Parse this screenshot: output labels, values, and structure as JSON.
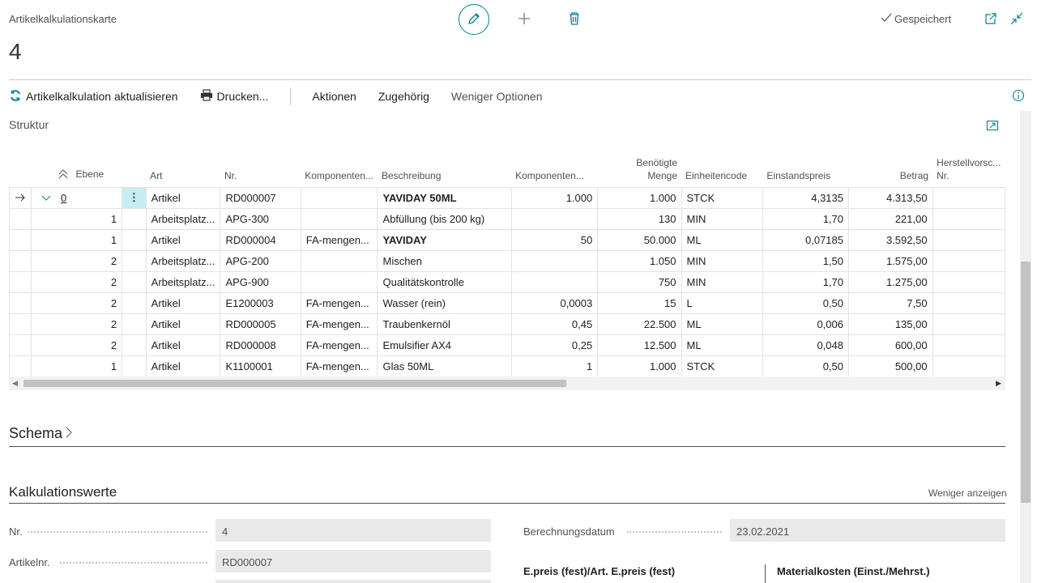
{
  "header": {
    "caption": "Artikelkalkulationskarte",
    "number": "4",
    "status": "Gespeichert",
    "icons": [
      "edit-icon",
      "plus-icon",
      "delete-icon",
      "open-new-window-icon",
      "collapse-icon"
    ]
  },
  "actions": {
    "update": "Artikelkalkulation aktualisieren",
    "print": "Drucken...",
    "actions": "Aktionen",
    "related": "Zugehörig",
    "fewer_options": "Weniger Optionen"
  },
  "struktur": {
    "title": "Struktur",
    "columns": {
      "ebene": "Ebene",
      "art": "Art",
      "nr": "Nr.",
      "komponenten": "Komponenten...",
      "beschreibung": "Beschreibung",
      "komponenten2": "Komponenten...",
      "menge_line1": "Benötigte",
      "menge_line2": "Menge",
      "einheit": "Einheitencode",
      "einstand": "Einstandspreis",
      "betrag": "Betrag",
      "herst_line1": "Herstellvorsc...",
      "herst_line2": "Nr."
    },
    "rows": [
      {
        "ebene": "0",
        "art": "Artikel",
        "nr": "RD000007",
        "komp": "",
        "beschreibung": "YAVIDAY 50ML",
        "komp2": "1.000",
        "menge": "1.000",
        "einheit": "STCK",
        "einstand": "4,3135",
        "betrag": "4.313,50",
        "herst": ""
      },
      {
        "ebene": "1",
        "art": "Arbeitsplatz...",
        "nr": "APG-300",
        "komp": "",
        "beschreibung": "Abfüllung (bis 200 kg)",
        "komp2": "",
        "menge": "130",
        "einheit": "MIN",
        "einstand": "1,70",
        "betrag": "221,00",
        "herst": ""
      },
      {
        "ebene": "1",
        "art": "Artikel",
        "nr": "RD000004",
        "komp": "FA-mengen...",
        "beschreibung": "YAVIDAY",
        "komp2": "50",
        "menge": "50.000",
        "einheit": "ML",
        "einstand": "0,07185",
        "betrag": "3.592,50",
        "herst": ""
      },
      {
        "ebene": "2",
        "art": "Arbeitsplatz...",
        "nr": "APG-200",
        "komp": "",
        "beschreibung": "Mischen",
        "komp2": "",
        "menge": "1.050",
        "einheit": "MIN",
        "einstand": "1,50",
        "betrag": "1.575,00",
        "herst": ""
      },
      {
        "ebene": "2",
        "art": "Arbeitsplatz...",
        "nr": "APG-900",
        "komp": "",
        "beschreibung": "Qualitätskontrolle",
        "komp2": "",
        "menge": "750",
        "einheit": "MIN",
        "einstand": "1,70",
        "betrag": "1.275,00",
        "herst": ""
      },
      {
        "ebene": "2",
        "art": "Artikel",
        "nr": "E1200003",
        "komp": "FA-mengen...",
        "beschreibung": "Wasser (rein)",
        "komp2": "0,0003",
        "menge": "15",
        "einheit": "L",
        "einstand": "0,50",
        "betrag": "7,50",
        "herst": ""
      },
      {
        "ebene": "2",
        "art": "Artikel",
        "nr": "RD000005",
        "komp": "FA-mengen...",
        "beschreibung": "Traubenkernöl",
        "komp2": "0,45",
        "menge": "22.500",
        "einheit": "ML",
        "einstand": "0,006",
        "betrag": "135,00",
        "herst": ""
      },
      {
        "ebene": "2",
        "art": "Artikel",
        "nr": "RD000008",
        "komp": "FA-mengen...",
        "beschreibung": "Emulsifier AX4",
        "komp2": "0,25",
        "menge": "12.500",
        "einheit": "ML",
        "einstand": "0,048",
        "betrag": "600,00",
        "herst": ""
      },
      {
        "ebene": "1",
        "art": "Artikel",
        "nr": "K1100001",
        "komp": "FA-mengen...",
        "beschreibung": "Glas 50ML",
        "komp2": "1",
        "menge": "1.000",
        "einheit": "STCK",
        "einstand": "0,50",
        "betrag": "500,00",
        "herst": ""
      }
    ]
  },
  "schema": {
    "title": "Schema"
  },
  "kalkulationswerte": {
    "title": "Kalkulationswerte",
    "show_less": "Weniger anzeigen",
    "nr_label": "Nr.",
    "nr_value": "4",
    "artikelnr_label": "Artikelnr.",
    "artikelnr_value": "RD000007",
    "datum_label": "Berechnungsdatum",
    "datum_value": "23.02.2021",
    "sub1": "E.preis (fest)/Art. E.preis (fest)",
    "sub2": "Materialkosten (Einst./Mehrst.)"
  },
  "colors": {
    "accent": "#00838f",
    "selected_cell": "#c6eef2"
  }
}
